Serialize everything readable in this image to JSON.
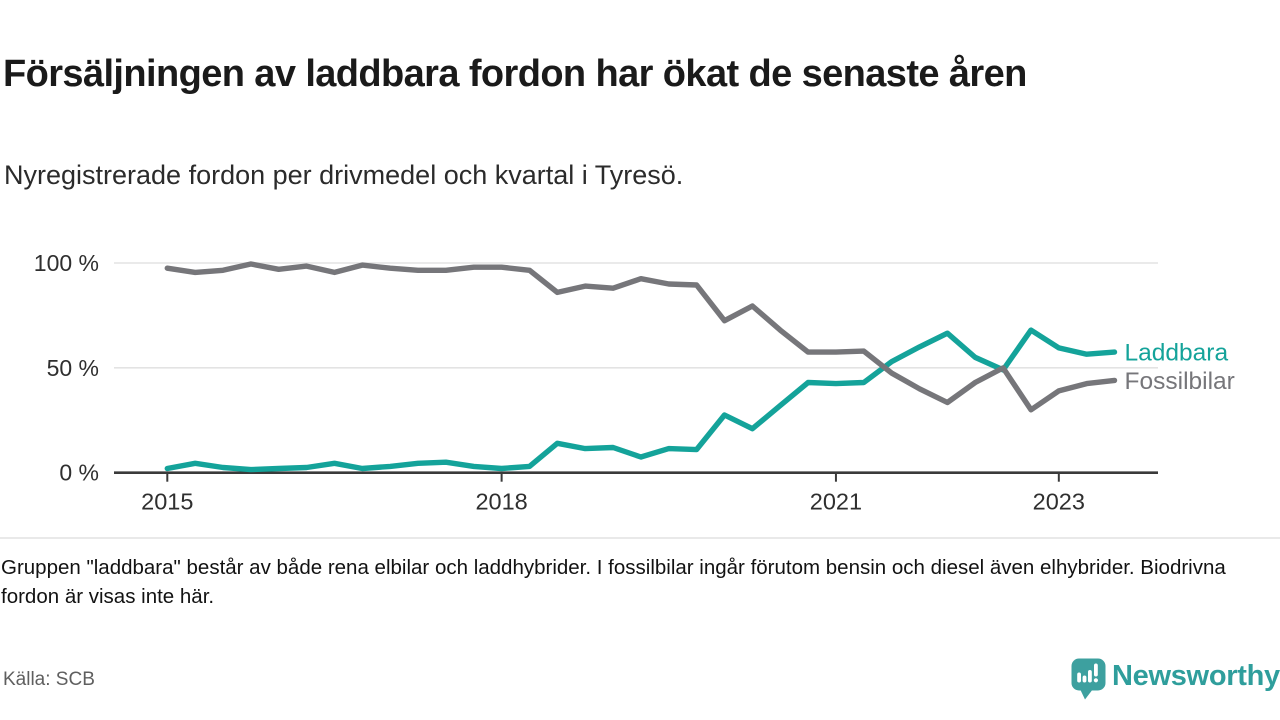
{
  "header": {
    "title": "Försäljningen av laddbara fordon har ökat de senaste åren",
    "subtitle": "Nyregistrerade fordon per drivmedel och kvartal i Tyresö."
  },
  "chart_data": {
    "type": "line",
    "unit": "%",
    "grid": "horizontal",
    "ylim": [
      0,
      100
    ],
    "y_ticks": [
      0,
      50,
      100
    ],
    "y_tick_suffix": " %",
    "x_tick_labels": [
      "2015",
      "2018",
      "2021",
      "2023"
    ],
    "x_tick_quarter_index": [
      0,
      12,
      24,
      32
    ],
    "legend_position": "right-of-line-end",
    "quarters": [
      "2015 Q1",
      "2015 Q2",
      "2015 Q3",
      "2015 Q4",
      "2016 Q1",
      "2016 Q2",
      "2016 Q3",
      "2016 Q4",
      "2017 Q1",
      "2017 Q2",
      "2017 Q3",
      "2017 Q4",
      "2018 Q1",
      "2018 Q2",
      "2018 Q3",
      "2018 Q4",
      "2019 Q1",
      "2019 Q2",
      "2019 Q3",
      "2019 Q4",
      "2020 Q1",
      "2020 Q2",
      "2020 Q3",
      "2020 Q4",
      "2021 Q1",
      "2021 Q2",
      "2021 Q3",
      "2021 Q4",
      "2022 Q1",
      "2022 Q2",
      "2022 Q3",
      "2022 Q4",
      "2023 Q1",
      "2023 Q2",
      "2023 Q3"
    ],
    "series": [
      {
        "name": "Laddbara",
        "color": "#14a39a",
        "values": [
          2,
          4.5,
          2.5,
          1.5,
          2,
          2.5,
          4.5,
          2,
          3,
          4.5,
          5,
          3,
          2,
          3,
          14,
          11.5,
          12,
          7.5,
          11.5,
          11,
          27.5,
          21,
          32,
          43,
          42.5,
          43,
          53,
          60,
          66.5,
          55,
          49,
          68,
          59.5,
          56.5,
          57.5
        ]
      },
      {
        "name": "Fossilbilar",
        "color": "#76767a",
        "values": [
          97.5,
          95.5,
          96.5,
          99.5,
          97,
          98.5,
          95.5,
          99,
          97.5,
          96.5,
          96.5,
          98,
          98,
          96.5,
          86,
          89,
          88,
          92.5,
          90,
          89.5,
          72.5,
          79.5,
          68,
          57.5,
          57.5,
          58,
          47.5,
          40,
          33.5,
          43,
          50,
          30,
          39,
          42.5,
          44
        ]
      }
    ],
    "axis_color": "#3a3a3a",
    "gridline_color": "#e3e3e3",
    "tick_label_color": "#2f2f2f"
  },
  "footer": {
    "note": "Gruppen \"laddbara\" består av både rena elbilar och laddhybrider. I fossilbilar ingår förutom bensin och diesel även elhybrider. Biodrivna fordon är visas inte här.",
    "source": "Källa: SCB"
  },
  "branding": {
    "logo_text": "Newsworthy",
    "logo_icon": "bar-chart-speech-bubble",
    "brand_color": "#2f9e9c",
    "icon_fill": "#3da09f"
  }
}
